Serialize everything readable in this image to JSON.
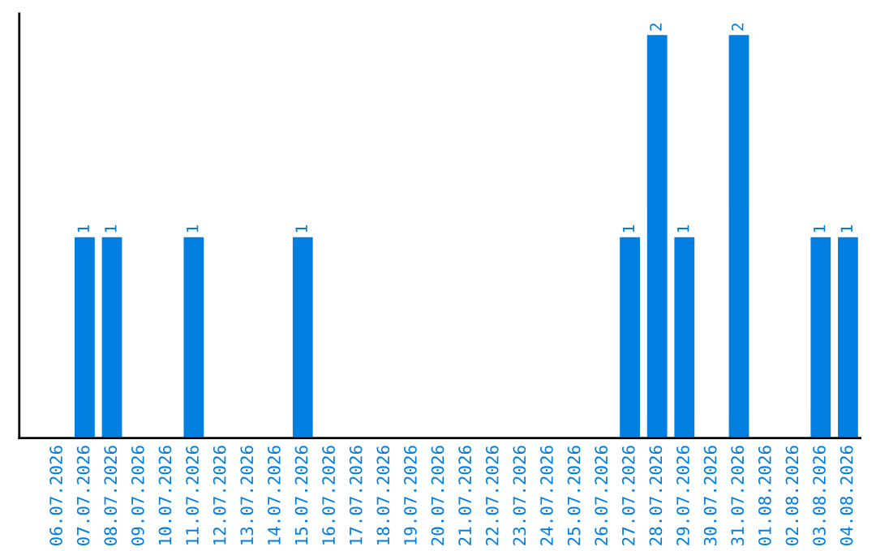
{
  "chart_data": {
    "type": "bar",
    "categories": [
      "06.07.2026",
      "07.07.2026",
      "08.07.2026",
      "09.07.2026",
      "10.07.2026",
      "11.07.2026",
      "12.07.2026",
      "13.07.2026",
      "14.07.2026",
      "15.07.2026",
      "16.07.2026",
      "17.07.2026",
      "18.07.2026",
      "19.07.2026",
      "20.07.2026",
      "21.07.2026",
      "22.07.2026",
      "23.07.2026",
      "24.07.2026",
      "25.07.2026",
      "26.07.2026",
      "27.07.2026",
      "28.07.2026",
      "29.07.2026",
      "30.07.2026",
      "31.07.2026",
      "01.08.2026",
      "02.08.2026",
      "03.08.2026",
      "04.08.2026"
    ],
    "values": [
      0,
      1,
      1,
      0,
      0,
      1,
      0,
      0,
      0,
      1,
      0,
      0,
      0,
      0,
      0,
      0,
      0,
      0,
      0,
      0,
      0,
      1,
      2,
      1,
      0,
      2,
      0,
      0,
      1,
      1
    ],
    "value_labels": [
      null,
      "1",
      "1",
      null,
      null,
      "1",
      null,
      null,
      null,
      "1",
      null,
      null,
      null,
      null,
      null,
      null,
      null,
      null,
      null,
      null,
      null,
      "1",
      "2",
      "1",
      null,
      "2",
      null,
      null,
      "1",
      "1"
    ],
    "color": "#007fe0",
    "grid": false,
    "legend": false
  }
}
